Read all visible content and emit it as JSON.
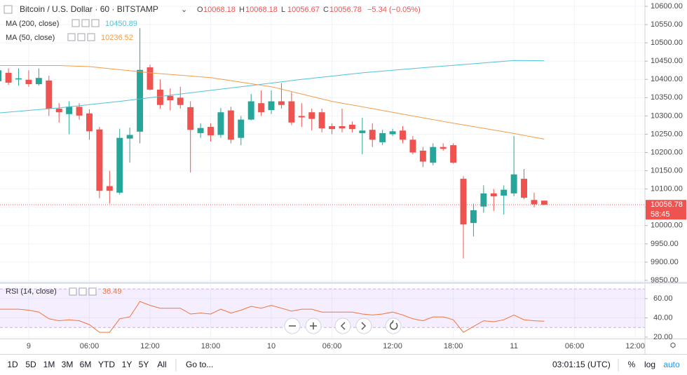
{
  "chart_data": [
    {
      "type": "candlestick",
      "title": "Bitcoin / U.S. Dollar · 60 · BITSTAMP",
      "ohlc_keys": [
        "O",
        "H",
        "L",
        "C"
      ],
      "change": "−5.34 (−0.05%)",
      "countdown": "58:45",
      "up_color": "#26a69a",
      "down_color": "#ef5350",
      "x": [
        -3,
        -2,
        -1,
        0,
        1,
        2,
        3,
        4,
        5,
        6,
        7,
        8,
        9,
        10,
        11,
        12,
        13,
        14,
        15,
        16,
        17,
        18,
        19,
        20,
        21,
        22,
        23,
        24,
        25,
        26,
        27,
        28,
        29,
        30,
        31,
        32,
        33,
        34,
        35,
        36,
        37,
        38,
        39,
        40,
        41,
        42,
        43,
        44,
        45,
        46,
        47,
        48,
        49,
        50,
        51
      ],
      "open": [
        10395,
        10418,
        10400,
        10399,
        10387,
        10397,
        10320,
        10305,
        10325,
        10307,
        10263,
        10108,
        10090,
        10238,
        10257,
        10433,
        10372,
        10355,
        10350,
        10324,
        10253,
        10270,
        10248,
        10315,
        10240,
        10290,
        10335,
        10316,
        10340,
        10340,
        10300,
        10310,
        10310,
        10272,
        10272,
        10276,
        10253,
        10262,
        10228,
        10250,
        10260,
        10235,
        10205,
        10172,
        10215,
        10220,
        10128,
        10007,
        10052,
        10088,
        10082,
        10088,
        10128,
        10070,
        10068.18
      ],
      "high": [
        10440,
        10430,
        10430,
        10425,
        10430,
        10410,
        10335,
        10340,
        10335,
        10318,
        10270,
        10150,
        10265,
        10268,
        10540,
        10440,
        10400,
        10375,
        10380,
        10340,
        10280,
        10280,
        10322,
        10325,
        10300,
        10360,
        10370,
        10370,
        10390,
        10365,
        10335,
        10320,
        10320,
        10280,
        10320,
        10285,
        10295,
        10280,
        10262,
        10265,
        10272,
        10245,
        10215,
        10225,
        10225,
        10225,
        10135,
        10060,
        10110,
        10100,
        10110,
        10245,
        10155,
        10090,
        10068.18
      ],
      "low": [
        10385,
        10385,
        10383,
        10380,
        10383,
        10300,
        10282,
        10250,
        10290,
        10235,
        10075,
        10060,
        10085,
        10172,
        10225,
        10370,
        10320,
        10315,
        10320,
        10145,
        10240,
        10230,
        10240,
        10225,
        10220,
        10288,
        10300,
        10305,
        10320,
        10275,
        10270,
        10260,
        10255,
        10250,
        10255,
        10255,
        10195,
        10215,
        10220,
        10245,
        10225,
        10195,
        10160,
        10165,
        10205,
        10170,
        9910,
        9970,
        10035,
        10040,
        10030,
        10080,
        10072,
        10050,
        10056.67
      ],
      "close": [
        10425,
        10391,
        10403,
        10387,
        10404,
        10320,
        10310,
        10325,
        10301,
        10258,
        10095,
        10095,
        10240,
        10248,
        10426,
        10372,
        10330,
        10343,
        10330,
        10262,
        10267,
        10247,
        10310,
        10235,
        10290,
        10340,
        10310,
        10340,
        10330,
        10282,
        10296,
        10292,
        10266,
        10264,
        10266,
        10264,
        10260,
        10235,
        10253,
        10258,
        10235,
        10200,
        10175,
        10215,
        10210,
        10172,
        10003,
        10042,
        10088,
        10080,
        10098,
        10140,
        10076,
        10058,
        10056.78
      ],
      "overlays": [
        {
          "name": "MA (200, close)",
          "color": "#4fc3d9",
          "x": [
            -3,
            3,
            9,
            15,
            21,
            27,
            33,
            39,
            45,
            48,
            51
          ],
          "values": [
            10308,
            10322,
            10340,
            10360,
            10380,
            10400,
            10418,
            10432,
            10445,
            10452,
            10450.89
          ]
        },
        {
          "name": "MA (50, close)",
          "color": "#f59b47",
          "x": [
            -3,
            3,
            6,
            12,
            18,
            24,
            30,
            36,
            42,
            48,
            51
          ],
          "values": [
            10438,
            10438,
            10435,
            10418,
            10405,
            10380,
            10340,
            10310,
            10280,
            10252,
            10236.52
          ]
        }
      ],
      "xlim": [
        -2.84,
        60.96
      ],
      "ylim": [
        9844.2,
        10617.3
      ],
      "yticks": [
        {
          "value": 9850,
          "label": "9850.00"
        },
        {
          "value": 9900,
          "label": "9900.00"
        },
        {
          "value": 9950,
          "label": "9950.00"
        },
        {
          "value": 10000,
          "label": "10000.00"
        },
        {
          "value": 10050,
          "label": "10050.00"
        },
        {
          "value": 10100,
          "label": "10100.00"
        },
        {
          "value": 10150,
          "label": "10150.00"
        },
        {
          "value": 10200,
          "label": "10200.00"
        },
        {
          "value": 10250,
          "label": "10250.00"
        },
        {
          "value": 10300,
          "label": "10300.00"
        },
        {
          "value": 10350,
          "label": "10350.00"
        },
        {
          "value": 10400,
          "label": "10400.00"
        },
        {
          "value": 10450,
          "label": "10450.00"
        },
        {
          "value": 10500,
          "label": "10500.00"
        },
        {
          "value": 10550,
          "label": "10550.00"
        },
        {
          "value": 10600,
          "label": "10600.00"
        }
      ],
      "grid": true
    },
    {
      "type": "line",
      "title": "RSI (14, close)",
      "color": "#f4733a",
      "band": [
        30,
        70
      ],
      "band_color": "#9b59f6",
      "x": [
        -3,
        -2,
        -1,
        0,
        1,
        2,
        3,
        4,
        5,
        6,
        7,
        8,
        9,
        10,
        11,
        12,
        13,
        14,
        15,
        16,
        17,
        18,
        19,
        20,
        21,
        22,
        23,
        24,
        25,
        26,
        27,
        28,
        29,
        30,
        31,
        32,
        33,
        34,
        35,
        36,
        37,
        38,
        39,
        40,
        41,
        42,
        43,
        44,
        45,
        46,
        47,
        48,
        49,
        50,
        51
      ],
      "values": [
        49,
        49,
        49,
        48,
        46,
        39,
        37,
        38,
        37,
        33,
        25,
        25,
        39,
        41,
        57,
        53,
        50,
        50,
        50,
        44,
        45,
        44,
        49,
        45,
        48,
        52,
        50,
        53,
        50,
        47,
        49,
        49,
        46,
        46,
        46,
        46,
        44,
        43,
        44,
        46,
        43,
        39,
        37,
        41,
        41,
        38,
        25,
        31,
        37,
        36,
        38,
        43,
        38,
        37,
        36.49
      ],
      "xlim": [
        -2.84,
        60.96
      ],
      "ylim": [
        18.5,
        75.3
      ],
      "xticks": [
        {
          "value": 0,
          "label": "9"
        },
        {
          "value": 6,
          "label": "06:00"
        },
        {
          "value": 12,
          "label": "12:00"
        },
        {
          "value": 18,
          "label": "18:00"
        },
        {
          "value": 24,
          "label": "10"
        },
        {
          "value": 30,
          "label": "06:00"
        },
        {
          "value": 36,
          "label": "12:00"
        },
        {
          "value": 42,
          "label": "18:00"
        },
        {
          "value": 48,
          "label": "11"
        },
        {
          "value": 54,
          "label": "06:00"
        },
        {
          "value": 60,
          "label": "12:00"
        }
      ],
      "yticks": [
        {
          "value": 20,
          "label": "20.00"
        },
        {
          "value": 40,
          "label": "40.00"
        },
        {
          "value": 60,
          "label": "60.00"
        }
      ],
      "grid": true
    }
  ],
  "toolbar": {
    "ranges": [
      "1D",
      "5D",
      "1M",
      "3M",
      "6M",
      "YTD",
      "1Y",
      "5Y",
      "All"
    ],
    "goto": "Go to...",
    "clock": "03:01:15 (UTC)",
    "scale_options": [
      "%",
      "log",
      "auto"
    ]
  }
}
